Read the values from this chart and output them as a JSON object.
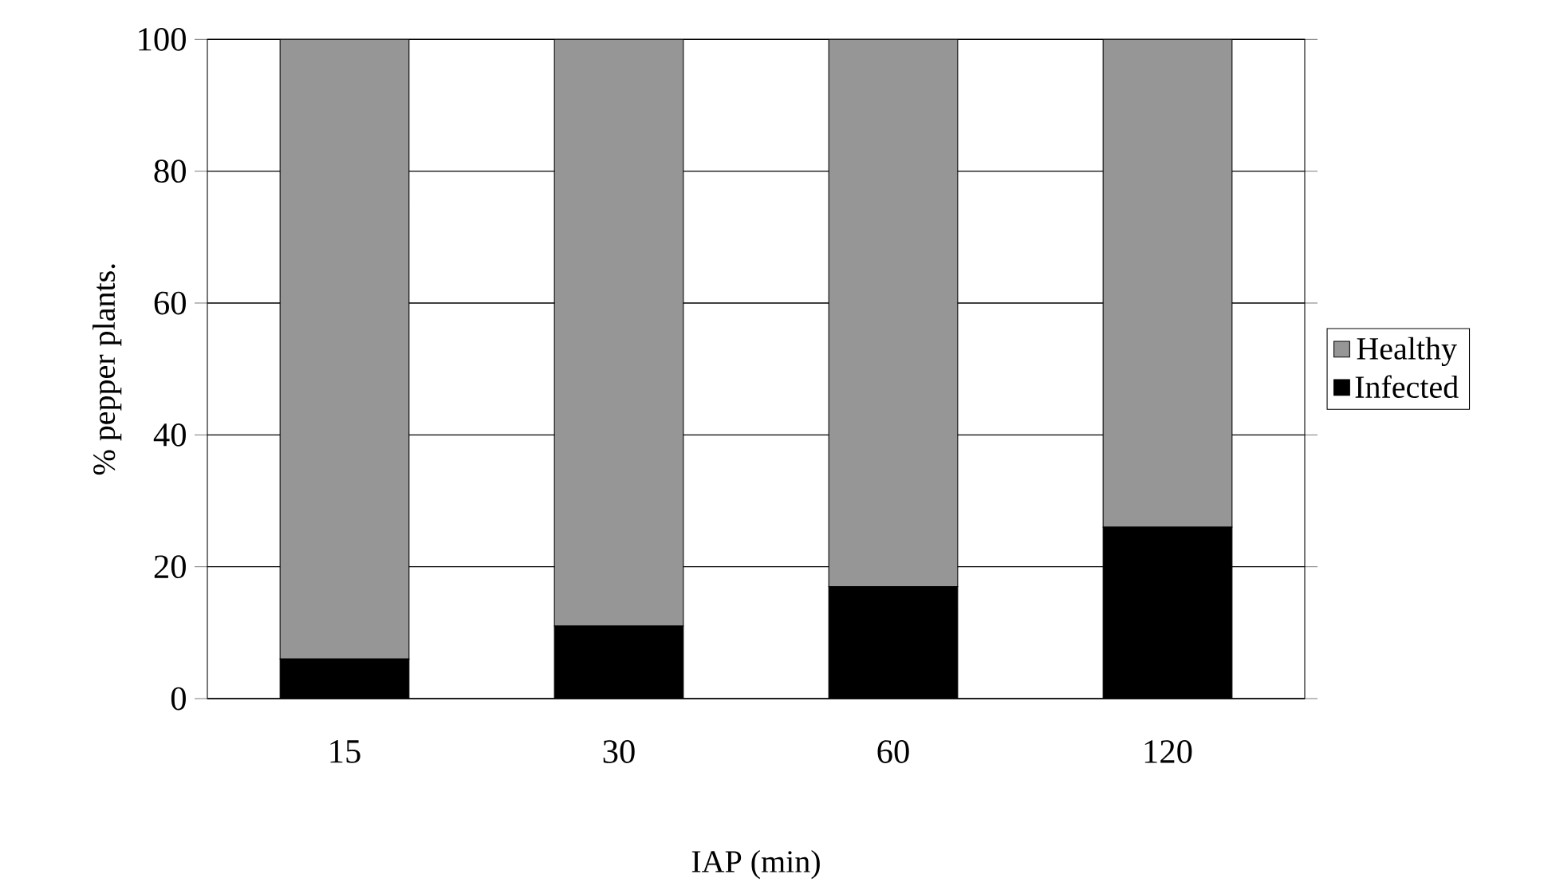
{
  "chart_data": {
    "type": "bar",
    "stacked": true,
    "xlabel": "IAP (min)",
    "ylabel": "% pepper plants.",
    "categories": [
      "15",
      "30",
      "60",
      "120"
    ],
    "series": [
      {
        "name": "Infected",
        "color": "#000000",
        "values": [
          6,
          11,
          17,
          26
        ]
      },
      {
        "name": "Healthy",
        "color": "#969696",
        "values": [
          94,
          89,
          83,
          74
        ]
      }
    ],
    "ylim": [
      0,
      100
    ],
    "yticks": [
      0,
      20,
      40,
      60,
      80,
      100
    ],
    "grid": "y",
    "legend": "right"
  }
}
